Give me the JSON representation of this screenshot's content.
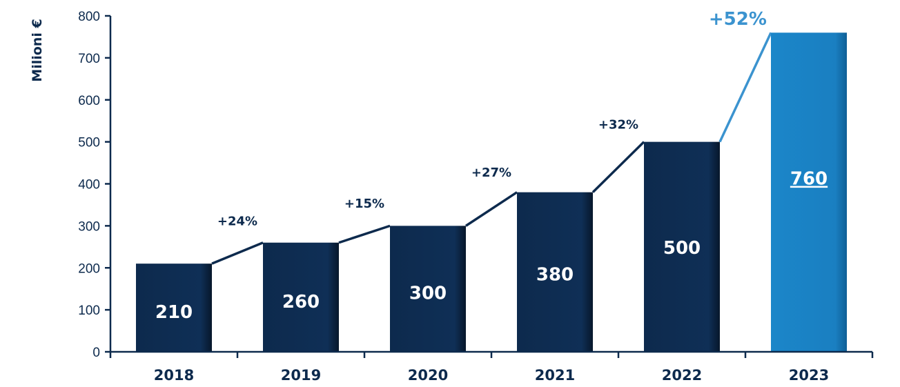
{
  "chart_data": {
    "type": "bar",
    "title": "",
    "xlabel": "",
    "ylabel": "Milioni €",
    "ylim": [
      0,
      800
    ],
    "yticks": [
      0,
      100,
      200,
      300,
      400,
      500,
      600,
      700,
      800
    ],
    "grid": false,
    "categories": [
      "2018",
      "2019",
      "2020",
      "2021",
      "2022",
      "2023"
    ],
    "values": [
      210,
      260,
      300,
      380,
      500,
      760
    ],
    "value_labels": [
      "210",
      "260",
      "300",
      "380",
      "500",
      "760"
    ],
    "growth_labels": [
      "+24%",
      "+15%",
      "+27%",
      "+32%",
      "+52%"
    ],
    "highlight_index": 5,
    "colors": {
      "bar": "#0d2a4d",
      "highlight_bar": "#1a7fc1",
      "connector": "#0d2a4d",
      "highlight_connector": "#3b93cf",
      "axis": "#0d2a4d",
      "highlight_text": "#3b93cf"
    }
  }
}
